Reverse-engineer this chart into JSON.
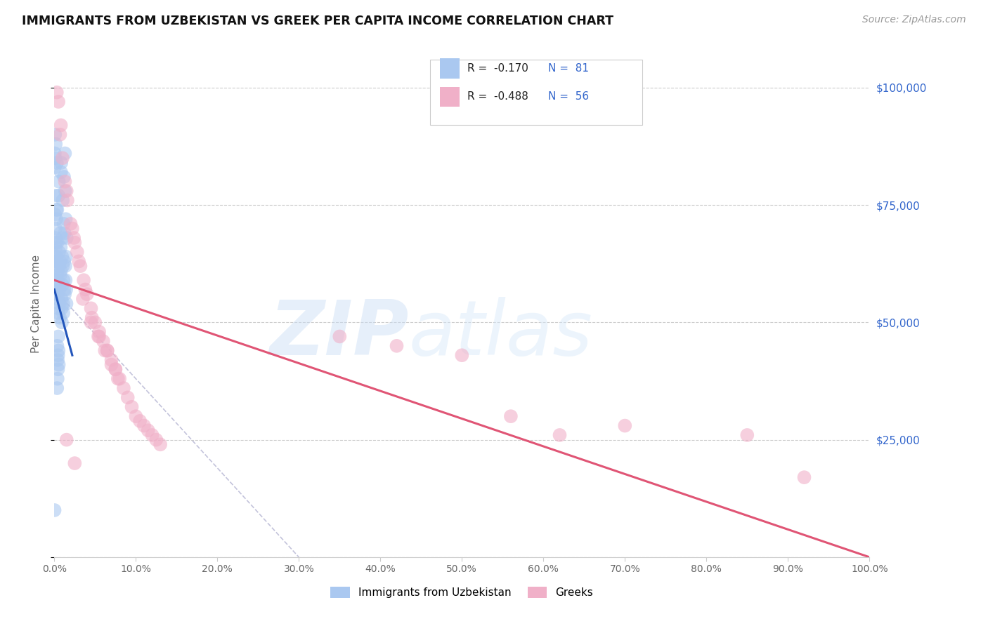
{
  "title": "IMMIGRANTS FROM UZBEKISTAN VS GREEK PER CAPITA INCOME CORRELATION CHART",
  "source": "Source: ZipAtlas.com",
  "ylabel": "Per Capita Income",
  "yticks": [
    0,
    25000,
    50000,
    75000,
    100000
  ],
  "ytick_labels": [
    "",
    "$25,000",
    "$50,000",
    "$75,000",
    "$100,000"
  ],
  "legend_blue_label": "Immigrants from Uzbekistan",
  "legend_pink_label": "Greeks",
  "blue_color": "#aac8f0",
  "pink_color": "#f0b0c8",
  "blue_line_color": "#2255bb",
  "pink_line_color": "#e05575",
  "blue_r": "-0.170",
  "blue_n": "81",
  "pink_r": "-0.488",
  "pink_n": "56",
  "blue_scatter_x": [
    0.0005,
    0.0008,
    0.001,
    0.0012,
    0.0015,
    0.0018,
    0.002,
    0.0022,
    0.0025,
    0.0028,
    0.003,
    0.0032,
    0.0035,
    0.0038,
    0.004,
    0.0042,
    0.0045,
    0.0048,
    0.005,
    0.0052,
    0.0055,
    0.0058,
    0.006,
    0.0062,
    0.0065,
    0.0068,
    0.007,
    0.0072,
    0.0075,
    0.0078,
    0.008,
    0.0082,
    0.0085,
    0.0088,
    0.009,
    0.0092,
    0.0095,
    0.0098,
    0.01,
    0.0102,
    0.0105,
    0.0108,
    0.011,
    0.0112,
    0.0115,
    0.0118,
    0.012,
    0.0122,
    0.0125,
    0.0128,
    0.013,
    0.0132,
    0.0135,
    0.0138,
    0.014,
    0.0142,
    0.0145,
    0.0148,
    0.015,
    0.0003,
    0.0006,
    0.0009,
    0.0011,
    0.0014,
    0.0016,
    0.0019,
    0.0021,
    0.0024,
    0.0026,
    0.0029,
    0.0031,
    0.0034,
    0.0036,
    0.0039,
    0.0041,
    0.0044,
    0.0046,
    0.0049,
    0.0051,
    0.0054,
    0.0002
  ],
  "blue_scatter_y": [
    86000,
    90000,
    85000,
    68000,
    70000,
    66000,
    64000,
    72000,
    63000,
    60000,
    58000,
    56000,
    74000,
    67000,
    61000,
    59000,
    55000,
    53000,
    52000,
    77000,
    80000,
    65000,
    62000,
    57000,
    54000,
    51000,
    63000,
    60000,
    69000,
    66000,
    61000,
    82000,
    84000,
    55000,
    53000,
    50000,
    64000,
    58000,
    68000,
    76000,
    62000,
    54000,
    52000,
    59000,
    71000,
    81000,
    63000,
    57000,
    69000,
    56000,
    86000,
    78000,
    62000,
    59000,
    72000,
    64000,
    57000,
    54000,
    68000,
    83000,
    73000,
    63000,
    59000,
    77000,
    88000,
    67000,
    64000,
    57000,
    74000,
    63000,
    84000,
    36000,
    45000,
    38000,
    42000,
    40000,
    43000,
    47000,
    44000,
    41000,
    10000
  ],
  "pink_scatter_x": [
    0.003,
    0.005,
    0.007,
    0.01,
    0.013,
    0.016,
    0.02,
    0.024,
    0.028,
    0.032,
    0.036,
    0.04,
    0.045,
    0.05,
    0.055,
    0.06,
    0.065,
    0.07,
    0.075,
    0.08,
    0.085,
    0.09,
    0.095,
    0.1,
    0.105,
    0.11,
    0.115,
    0.12,
    0.125,
    0.13,
    0.008,
    0.015,
    0.022,
    0.03,
    0.038,
    0.046,
    0.054,
    0.062,
    0.07,
    0.078,
    0.025,
    0.035,
    0.045,
    0.055,
    0.065,
    0.075,
    0.35,
    0.42,
    0.5,
    0.56,
    0.62,
    0.7,
    0.85,
    0.92,
    0.015,
    0.025
  ],
  "pink_scatter_y": [
    99000,
    97000,
    90000,
    85000,
    80000,
    76000,
    71000,
    68000,
    65000,
    62000,
    59000,
    56000,
    53000,
    50000,
    48000,
    46000,
    44000,
    42000,
    40000,
    38000,
    36000,
    34000,
    32000,
    30000,
    29000,
    28000,
    27000,
    26000,
    25000,
    24000,
    92000,
    78000,
    70000,
    63000,
    57000,
    51000,
    47000,
    44000,
    41000,
    38000,
    67000,
    55000,
    50000,
    47000,
    44000,
    40000,
    47000,
    45000,
    43000,
    30000,
    26000,
    28000,
    26000,
    17000,
    25000,
    20000
  ],
  "blue_trend_x": [
    0.0,
    0.022
  ],
  "blue_trend_y": [
    57000,
    43000
  ],
  "pink_trend_x": [
    0.0,
    1.0
  ],
  "pink_trend_y": [
    59000,
    0
  ],
  "dash_trend_x": [
    0.0,
    0.3
  ],
  "dash_trend_y": [
    57000,
    0
  ],
  "xlim": [
    0.0,
    1.0
  ],
  "ylim": [
    0,
    108000
  ],
  "title_fontsize": 12.5,
  "source_fontsize": 10,
  "axis_color": "#666666",
  "grid_color": "#cccccc",
  "spine_color": "#cccccc"
}
